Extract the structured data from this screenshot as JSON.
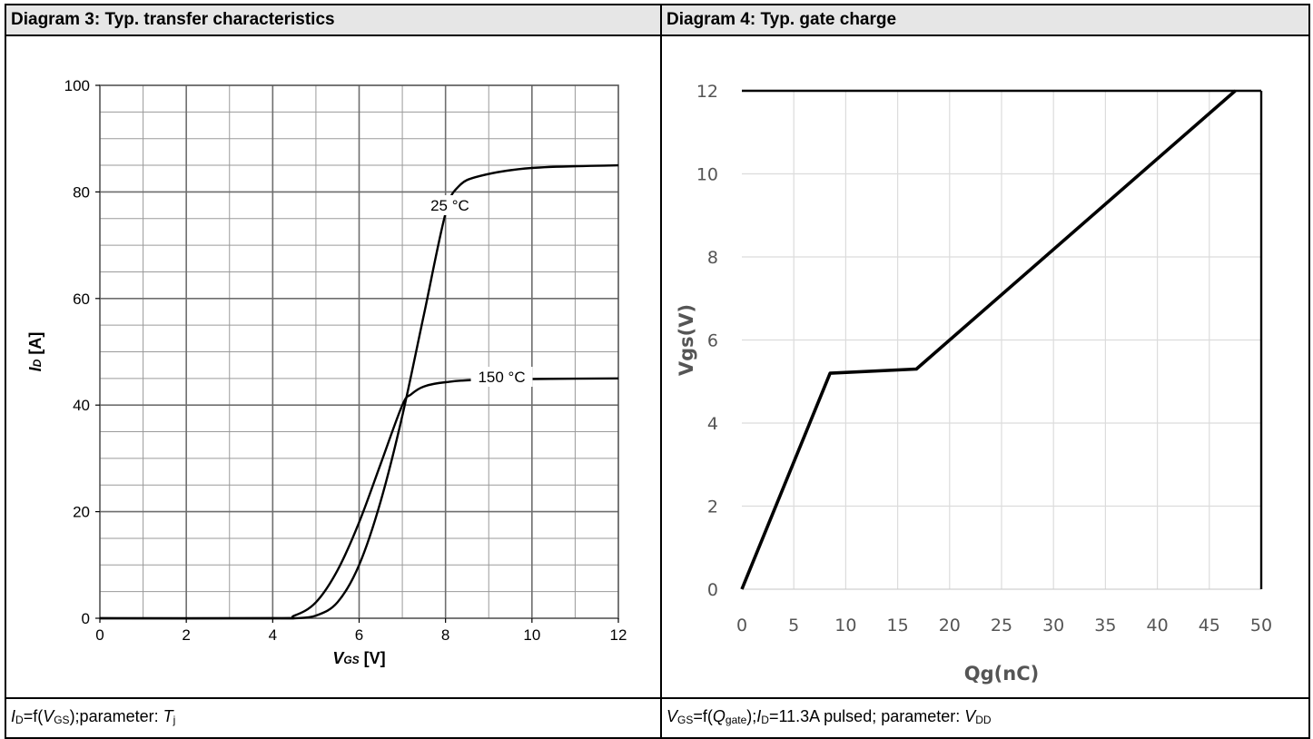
{
  "left_panel": {
    "header": "Diagram 3: Typ. transfer characteristics",
    "caption": {
      "p1_sym": "I",
      "p1_sub": "D",
      "p2": "=f(",
      "p3_sym": "V",
      "p3_sub": "GS",
      "p4": ");parameter:  ",
      "p5_sym": "T",
      "p5_sub": "j"
    }
  },
  "right_panel": {
    "header": "Diagram 4: Typ. gate charge",
    "caption": {
      "p1_sym": "V",
      "p1_sub": "GS",
      "p2": "=f(",
      "p3_sym": "Q",
      "p3_sub": "gate",
      "p4": ");",
      "p5_sym": "I",
      "p5_sub": "D",
      "p6": "=11.3A pulsed; parameter:  ",
      "p7_sym": "V",
      "p7_sub": "DD"
    }
  },
  "chart_data": [
    {
      "type": "line",
      "title": "Diagram 3: Typ. transfer characteristics",
      "xlabel": {
        "sym": "V",
        "sub": "GS",
        "unit": " [V]"
      },
      "ylabel": {
        "sym": "I",
        "sub": "D",
        "unit": " [A]"
      },
      "xlim": [
        0,
        12
      ],
      "ylim": [
        0,
        100
      ],
      "xticks": [
        "0",
        "2",
        "4",
        "6",
        "8",
        "10",
        "12"
      ],
      "yticks": [
        "0",
        "20",
        "40",
        "60",
        "80",
        "100"
      ],
      "grid": true,
      "series": [
        {
          "name": "25 °C",
          "x": [
            0,
            4.0,
            4.5,
            5.0,
            5.5,
            6.0,
            6.5,
            7.0,
            7.5,
            8.0,
            8.3,
            8.8,
            10.0,
            12.0
          ],
          "y": [
            0,
            0,
            0,
            0.5,
            3,
            10,
            22,
            38,
            57,
            76,
            81,
            83,
            84.5,
            85
          ]
        },
        {
          "name": "150 °C",
          "x": [
            0,
            4.0,
            4.5,
            5.0,
            5.5,
            6.0,
            6.5,
            7.0,
            7.2,
            7.5,
            8.0,
            9.0,
            12.0
          ],
          "y": [
            0,
            0,
            0.5,
            3,
            9,
            18,
            29,
            40,
            42,
            43.5,
            44.3,
            44.8,
            45
          ]
        }
      ],
      "annotations": [
        {
          "text": "25 °C",
          "x": 8.1,
          "y": 77
        },
        {
          "text": "150 °C",
          "x": 9.3,
          "y": 44.8
        }
      ]
    },
    {
      "type": "line",
      "title": "Diagram 4: Typ. gate charge",
      "xlabel": "Qg(nC)",
      "ylabel": "Vgs(V)",
      "xlim": [
        0,
        50
      ],
      "ylim": [
        0,
        12
      ],
      "xticks": [
        "0",
        "5",
        "10",
        "15",
        "20",
        "25",
        "30",
        "35",
        "40",
        "45",
        "50"
      ],
      "yticks": [
        "0",
        "2",
        "4",
        "6",
        "8",
        "10",
        "12"
      ],
      "grid": true,
      "series": [
        {
          "name": "",
          "x": [
            0,
            8.5,
            16.8,
            47.5
          ],
          "y": [
            0,
            5.2,
            5.3,
            12
          ]
        }
      ]
    }
  ]
}
